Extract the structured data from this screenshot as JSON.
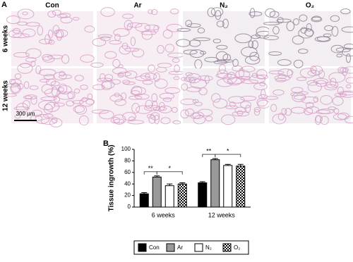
{
  "panel_a": {
    "label": "A",
    "columns": [
      "Con",
      "Ar",
      "N₂",
      "O₂"
    ],
    "rows": [
      "6 weeks",
      "12 weeks"
    ],
    "scale_bar": "300 µm"
  },
  "chart_data": {
    "type": "bar",
    "panel_label": "B",
    "y_label": "Tissue ingrowth (%)",
    "categories": [
      "6 weeks",
      "12 weeks"
    ],
    "series": [
      {
        "name": "Con",
        "color": "#000000",
        "values": [
          23,
          42
        ],
        "errors": [
          2,
          2
        ]
      },
      {
        "name": "Ar",
        "color": "#999999",
        "values": [
          52,
          82
        ],
        "errors": [
          2,
          2
        ]
      },
      {
        "name": "N₂",
        "color": "#ffffff",
        "values": [
          37,
          72
        ],
        "errors": [
          3,
          2
        ]
      },
      {
        "name": "O₂",
        "color": "#000000",
        "pattern": "checkerboard",
        "values": [
          40,
          71
        ],
        "errors": [
          2,
          3
        ]
      }
    ],
    "annotations": [
      {
        "text": "**",
        "category": 0,
        "from": 0,
        "to": 1
      },
      {
        "text": "*",
        "category": 0,
        "from": 1,
        "to": 3
      },
      {
        "text": "**",
        "category": 1,
        "from": 0,
        "to": 1
      },
      {
        "text": "*",
        "category": 1,
        "from": 1,
        "to": 3
      }
    ],
    "ylim": [
      0,
      100
    ],
    "yticks": [
      0,
      20,
      40,
      60,
      80,
      100
    ],
    "legend": "bottom"
  }
}
